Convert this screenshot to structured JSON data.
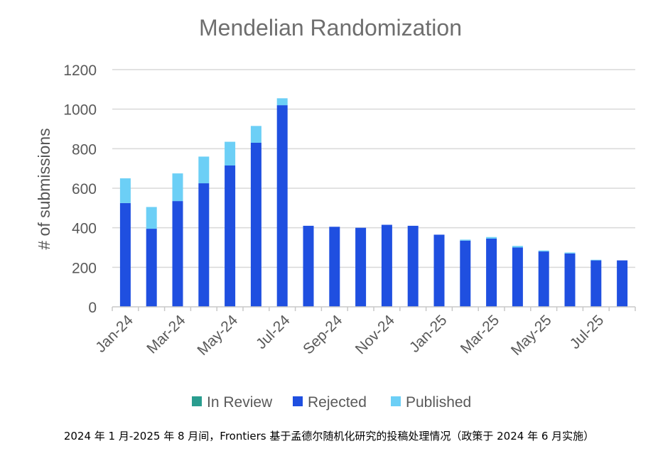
{
  "chart_data": {
    "type": "bar",
    "stacked": true,
    "title": "Mendelian Randomization",
    "xlabel": "",
    "ylabel": "# of submissions",
    "ylim": [
      0,
      1200
    ],
    "yticks": [
      0,
      200,
      400,
      600,
      800,
      1000,
      1200
    ],
    "grid": true,
    "legend_position": "bottom",
    "categories": [
      "Jan-24",
      "Feb-24",
      "Mar-24",
      "Apr-24",
      "May-24",
      "Jun-24",
      "Jul-24",
      "Aug-24",
      "Sep-24",
      "Oct-24",
      "Nov-24",
      "Dec-24",
      "Jan-25",
      "Feb-25",
      "Mar-25",
      "Apr-25",
      "May-25",
      "Jun-25",
      "Jul-25",
      "Aug-25"
    ],
    "tick_labels": [
      "Jan-24",
      "Mar-24",
      "May-24",
      "Jul-24",
      "Sep-24",
      "Nov-24",
      "Jan-25",
      "Mar-25",
      "May-25",
      "Jul-25"
    ],
    "series": [
      {
        "name": "In Review",
        "color": "#2a9d8f",
        "values": [
          0,
          0,
          0,
          0,
          0,
          0,
          0,
          0,
          0,
          0,
          0,
          0,
          0,
          0,
          0,
          0,
          0,
          0,
          0,
          0
        ]
      },
      {
        "name": "Rejected",
        "color": "#1f4fe0",
        "values": [
          525,
          395,
          535,
          625,
          715,
          830,
          1020,
          410,
          405,
          400,
          415,
          410,
          365,
          335,
          345,
          300,
          280,
          270,
          235,
          235
        ]
      },
      {
        "name": "Published",
        "color": "#6ccff6",
        "values": [
          125,
          110,
          140,
          135,
          120,
          85,
          35,
          0,
          0,
          0,
          0,
          0,
          0,
          5,
          8,
          8,
          5,
          5,
          3,
          0
        ]
      }
    ]
  },
  "caption": "2024 年 1 月-2025 年 8 月间，Frontiers 基于孟德尔随机化研究的投稿处理情况（政策于 2024 年 6 月实施）"
}
